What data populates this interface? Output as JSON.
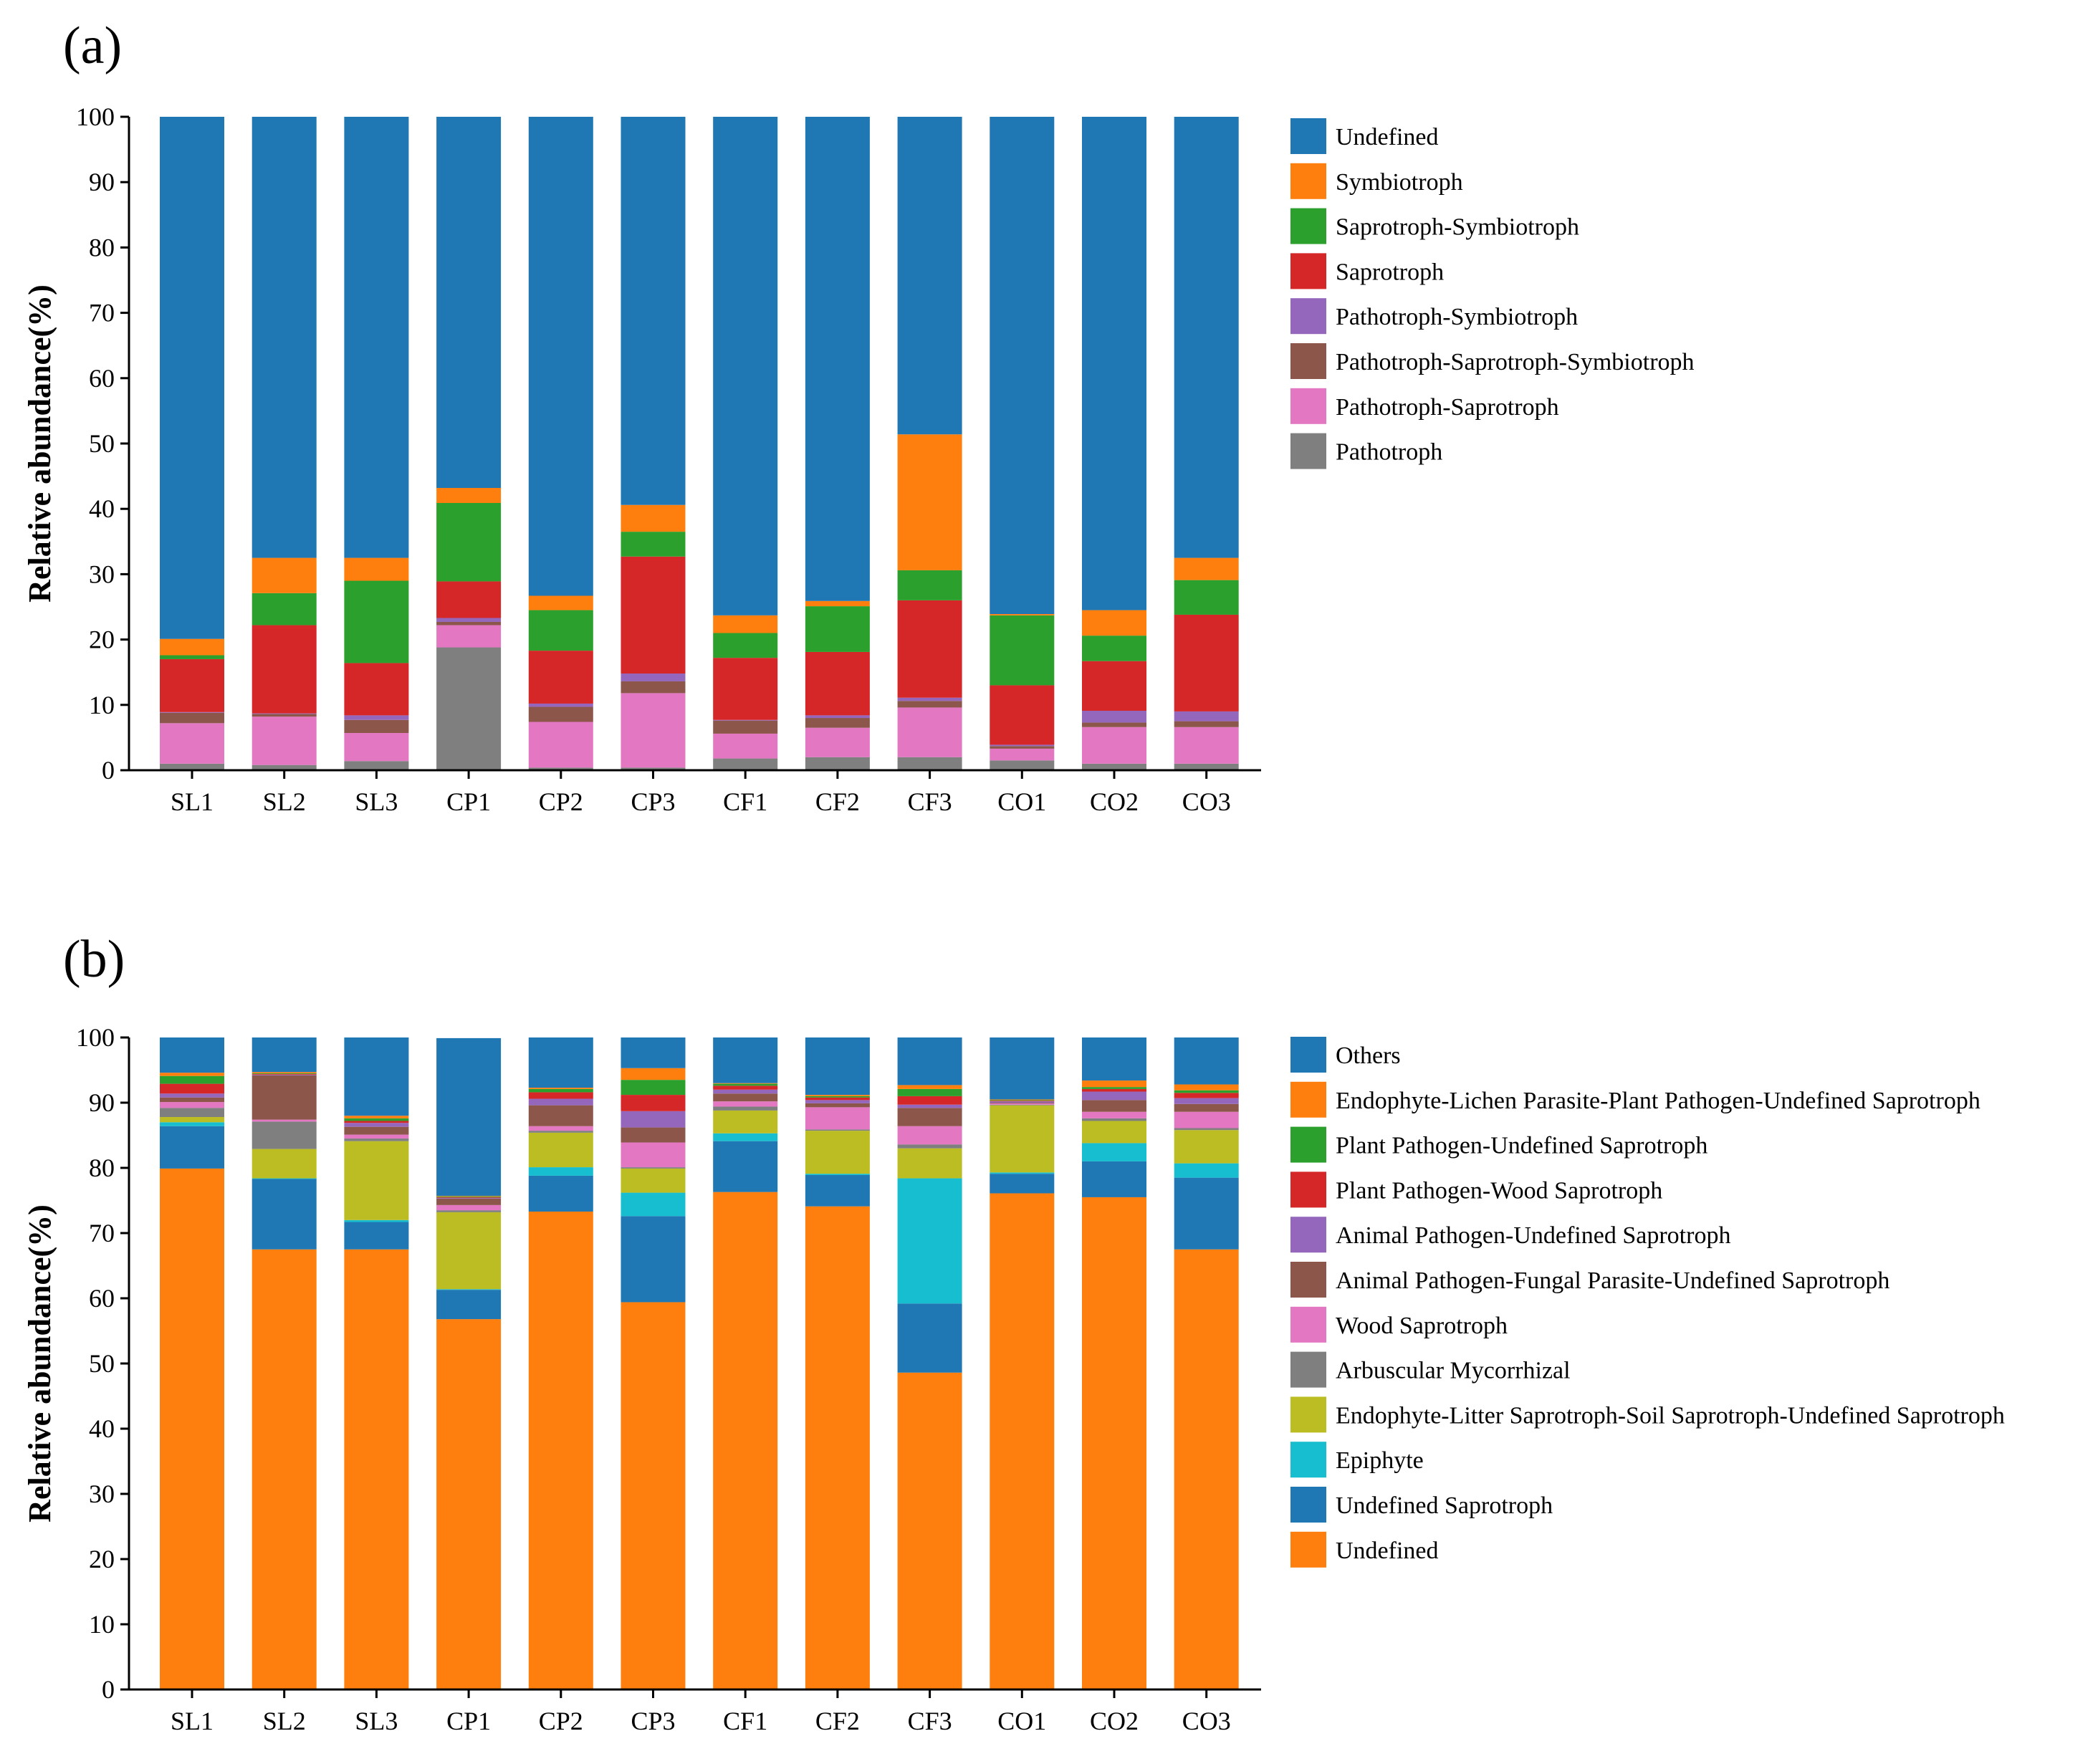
{
  "chart_data": [
    {
      "type": "bar",
      "stacked": true,
      "panel_label": "(a)",
      "title": "",
      "xlabel": "",
      "ylabel": "Relative abundance(%)",
      "ylim": [
        0,
        100
      ],
      "yticks": [
        0,
        10,
        20,
        30,
        40,
        50,
        60,
        70,
        80,
        90,
        100
      ],
      "legend_position": "right",
      "categories": [
        "SL1",
        "SL2",
        "SL3",
        "CP1",
        "CP2",
        "CP3",
        "CF1",
        "CF2",
        "CF3",
        "CO1",
        "CO2",
        "CO3"
      ],
      "series": [
        {
          "name": "Pathotroph",
          "color": "#7f7f7f",
          "values": [
            1.0,
            0.8,
            1.4,
            18.8,
            0.4,
            0.4,
            1.8,
            2.0,
            2.0,
            1.5,
            1.0,
            1.0
          ]
        },
        {
          "name": "Pathotroph-Saprotroph",
          "color": "#e377c2",
          "values": [
            6.2,
            7.4,
            4.3,
            3.4,
            7.0,
            11.4,
            3.8,
            4.5,
            7.6,
            1.8,
            5.6,
            5.6
          ]
        },
        {
          "name": "Pathotroph-Saprotroph-Symbiotroph",
          "color": "#8c564b",
          "values": [
            1.6,
            0.4,
            2.0,
            0.5,
            2.3,
            1.8,
            2.0,
            1.5,
            1.0,
            0.4,
            0.7,
            0.9
          ]
        },
        {
          "name": "Pathotroph-Symbiotroph",
          "color": "#9467bd",
          "values": [
            0.1,
            0.1,
            0.7,
            0.6,
            0.5,
            1.2,
            0.1,
            0.4,
            0.5,
            0.2,
            1.8,
            1.5
          ]
        },
        {
          "name": "Saprotroph",
          "color": "#d62728",
          "values": [
            8.1,
            13.5,
            8.0,
            5.6,
            8.1,
            17.9,
            9.5,
            9.7,
            14.9,
            9.1,
            7.6,
            14.8
          ]
        },
        {
          "name": "Saprotroph-Symbiotroph",
          "color": "#2ca02c",
          "values": [
            0.6,
            4.9,
            12.6,
            12.0,
            6.2,
            3.8,
            3.8,
            7.0,
            4.6,
            10.7,
            3.9,
            5.3
          ]
        },
        {
          "name": "Symbiotroph",
          "color": "#ff7f0e",
          "values": [
            2.5,
            5.4,
            3.5,
            2.3,
            2.2,
            4.1,
            2.7,
            0.8,
            20.8,
            0.2,
            3.9,
            3.4
          ]
        },
        {
          "name": "Undefined",
          "color": "#1f77b4",
          "values": [
            79.9,
            67.5,
            67.5,
            56.8,
            73.3,
            59.4,
            76.3,
            74.1,
            48.6,
            76.1,
            75.5,
            67.5
          ]
        }
      ],
      "legend_order": [
        "Undefined",
        "Symbiotroph",
        "Saprotroph-Symbiotroph",
        "Saprotroph",
        "Pathotroph-Symbiotroph",
        "Pathotroph-Saprotroph-Symbiotroph",
        "Pathotroph-Saprotroph",
        "Pathotroph"
      ]
    },
    {
      "type": "bar",
      "stacked": true,
      "panel_label": "(b)",
      "title": "",
      "xlabel": "",
      "ylabel": "Relative abundance(%)",
      "ylim": [
        0,
        100
      ],
      "yticks": [
        0,
        10,
        20,
        30,
        40,
        50,
        60,
        70,
        80,
        90,
        100
      ],
      "legend_position": "right",
      "categories": [
        "SL1",
        "SL2",
        "SL3",
        "CP1",
        "CP2",
        "CP3",
        "CF1",
        "CF2",
        "CF3",
        "CO1",
        "CO2",
        "CO3"
      ],
      "series": [
        {
          "name": "Undefined",
          "color": "#ff7f0e",
          "values": [
            79.9,
            67.5,
            67.5,
            56.8,
            73.3,
            59.4,
            76.3,
            74.1,
            48.6,
            76.1,
            75.5,
            67.5
          ]
        },
        {
          "name": "Undefined Saprotroph",
          "color": "#1f77b4",
          "values": [
            6.5,
            10.8,
            4.2,
            4.5,
            5.5,
            13.2,
            7.8,
            4.8,
            10.6,
            3.0,
            5.5,
            11.0
          ]
        },
        {
          "name": "Epiphyte",
          "color": "#17becf",
          "values": [
            0.6,
            0.1,
            0.3,
            0.1,
            1.3,
            3.6,
            1.2,
            0.2,
            19.2,
            0.2,
            2.8,
            2.2
          ]
        },
        {
          "name": "Endophyte-Litter Saprotroph-Soil Saprotroph-Undefined Saprotroph",
          "color": "#bcbd22",
          "values": [
            0.8,
            4.5,
            12.1,
            11.8,
            5.3,
            3.7,
            3.5,
            6.6,
            4.6,
            10.3,
            3.4,
            5.1
          ]
        },
        {
          "name": "Arbuscular Mycorrhizal",
          "color": "#7f7f7f",
          "values": [
            1.4,
            4.2,
            0.4,
            0.3,
            0.3,
            0.2,
            0.6,
            0.2,
            0.6,
            0.1,
            0.4,
            0.3
          ]
        },
        {
          "name": "Wood Saprotroph",
          "color": "#e377c2",
          "values": [
            0.9,
            0.3,
            0.6,
            0.8,
            0.7,
            3.8,
            0.8,
            3.4,
            2.8,
            0.2,
            1.0,
            2.5
          ]
        },
        {
          "name": "Animal Pathogen-Fungal Parasite-Undefined Saprotroph",
          "color": "#8c564b",
          "values": [
            0.7,
            6.8,
            1.2,
            1.0,
            3.2,
            2.3,
            1.2,
            0.6,
            2.8,
            0.1,
            1.8,
            1.2
          ]
        },
        {
          "name": "Animal Pathogen-Undefined Saprotroph",
          "color": "#9467bd",
          "values": [
            0.6,
            0.1,
            0.6,
            0.1,
            1.0,
            2.5,
            0.6,
            0.5,
            0.5,
            0.2,
            1.3,
            0.9
          ]
        },
        {
          "name": "Plant Pathogen-Wood Saprotroph",
          "color": "#d62728",
          "values": [
            1.5,
            0.1,
            0.3,
            0.1,
            1.0,
            2.5,
            0.6,
            0.4,
            1.3,
            0.1,
            0.4,
            0.8
          ]
        },
        {
          "name": "Plant Pathogen-Undefined Saprotroph",
          "color": "#2ca02c",
          "values": [
            1.2,
            0.1,
            0.4,
            0.1,
            0.5,
            2.3,
            0.3,
            0.2,
            1.1,
            0.1,
            0.3,
            0.4
          ]
        },
        {
          "name": "Endophyte-Lichen Parasite-Plant Pathogen-Undefined Saprotroph",
          "color": "#ff7f0e",
          "values": [
            0.5,
            0.2,
            0.4,
            0.1,
            0.2,
            1.8,
            0.1,
            0.2,
            0.6,
            0.1,
            1.0,
            0.9
          ]
        },
        {
          "name": "Others",
          "color": "#1f77b4",
          "values": [
            5.4,
            5.3,
            12.0,
            24.2,
            7.7,
            4.7,
            7.0,
            8.8,
            7.3,
            9.5,
            6.6,
            7.2
          ]
        }
      ],
      "legend_order": [
        "Others",
        "Endophyte-Lichen Parasite-Plant Pathogen-Undefined Saprotroph",
        "Plant Pathogen-Undefined Saprotroph",
        "Plant Pathogen-Wood Saprotroph",
        "Animal Pathogen-Undefined Saprotroph",
        "Animal Pathogen-Fungal Parasite-Undefined Saprotroph",
        "Wood Saprotroph",
        "Arbuscular Mycorrhizal",
        "Endophyte-Litter Saprotroph-Soil Saprotroph-Undefined Saprotroph",
        "Epiphyte",
        "Undefined Saprotroph",
        "Undefined"
      ]
    }
  ]
}
